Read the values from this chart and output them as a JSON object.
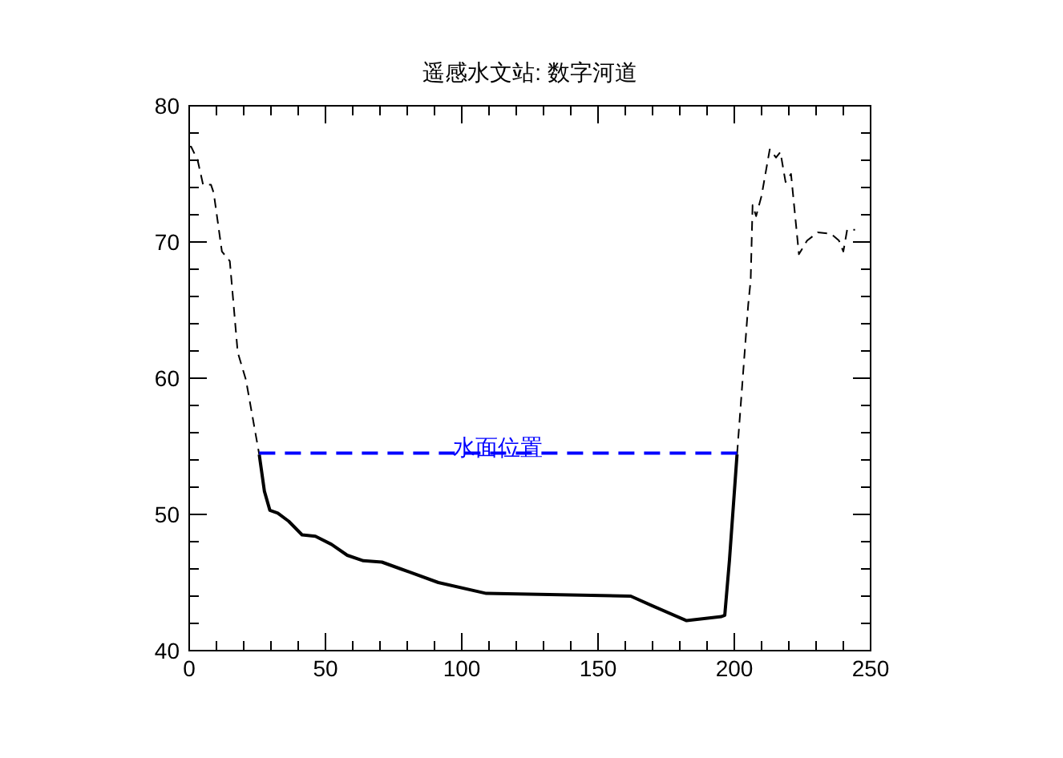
{
  "chart_data": {
    "type": "line",
    "title": "遥感水文站: 数字河道",
    "xlim": [
      0,
      250
    ],
    "ylim": [
      40,
      80
    ],
    "xticks": [
      0,
      {
        "value": 10,
        "label": null
      },
      {
        "value": 20,
        "label": null
      },
      {
        "value": 30,
        "label": null
      },
      {
        "value": 40,
        "label": null
      },
      50,
      {
        "value": 60,
        "label": null
      },
      {
        "value": 70,
        "label": null
      },
      {
        "value": 80,
        "label": null
      },
      {
        "value": 90,
        "label": null
      },
      100,
      {
        "value": 110,
        "label": null
      },
      {
        "value": 120,
        "label": null
      },
      {
        "value": 130,
        "label": null
      },
      {
        "value": 140,
        "label": null
      },
      150,
      {
        "value": 160,
        "label": null
      },
      {
        "value": 170,
        "label": null
      },
      {
        "value": 180,
        "label": null
      },
      {
        "value": 190,
        "label": null
      },
      200,
      {
        "value": 210,
        "label": null
      },
      {
        "value": 220,
        "label": null
      },
      {
        "value": 230,
        "label": null
      },
      {
        "value": 240,
        "label": null
      },
      250
    ],
    "yticks": [
      40,
      {
        "value": 42,
        "label": null
      },
      {
        "value": 44,
        "label": null
      },
      {
        "value": 46,
        "label": null
      },
      {
        "value": 48,
        "label": null
      },
      50,
      {
        "value": 52,
        "label": null
      },
      {
        "value": 54,
        "label": null
      },
      {
        "value": 56,
        "label": null
      },
      {
        "value": 58,
        "label": null
      },
      60,
      {
        "value": 62,
        "label": null
      },
      {
        "value": 64,
        "label": null
      },
      {
        "value": 66,
        "label": null
      },
      {
        "value": 68,
        "label": null
      },
      70,
      {
        "value": 72,
        "label": null
      },
      {
        "value": 74,
        "label": null
      },
      {
        "value": 76,
        "label": null
      },
      {
        "value": 78,
        "label": null
      },
      80
    ],
    "series": [
      {
        "color": "#000000",
        "line_style": "dashed",
        "x": [
          0,
          0.7,
          3.1,
          5.1,
          8,
          9,
          12,
          14.9,
          17.8,
          20.8,
          25.7
        ],
        "values": [
          77.0,
          77.0,
          76.0,
          74.2,
          74.2,
          73.6,
          69.3,
          68.6,
          61.9,
          59.9,
          54.4
        ]
      },
      {
        "color": "#000000",
        "line_style": "dashed",
        "x": [
          201,
          205.1,
          206,
          206.7,
          208,
          210,
          213,
          215.3,
          216.9,
          218.8,
          220.8,
          223.7,
          226.7,
          230.6,
          235.5,
          238.4,
          240,
          241.4,
          244.3
        ],
        "values": [
          54.4,
          65.4,
          67.2,
          72.7,
          71.9,
          73.4,
          76.8,
          76.2,
          76.6,
          74.4,
          75.0,
          69.1,
          70.1,
          70.7,
          70.6,
          70.1,
          69.3,
          70.9,
          70.9
        ]
      },
      {
        "color": "#000000",
        "line_style": "solid",
        "x": [
          25.7,
          27.6,
          29.6,
          32.5,
          36.5,
          41.4,
          46.3,
          52.2,
          58,
          63.9,
          70.7,
          77.6,
          91.4,
          109,
          162,
          169.8,
          182.5,
          195.3,
          196.5,
          198.2,
          201
        ],
        "values": [
          54.4,
          51.7,
          50.3,
          50.1,
          49.5,
          48.5,
          48.4,
          47.8,
          47.0,
          46.6,
          46.5,
          46.0,
          45.0,
          44.2,
          44.0,
          43.3,
          42.2,
          42.5,
          42.6,
          46.6,
          54.4
        ]
      },
      {
        "name": "水面位置",
        "color": "#0000ff",
        "line_style": "dashed",
        "x": [
          25.7,
          201
        ],
        "values": [
          54.5,
          54.5
        ]
      }
    ]
  }
}
